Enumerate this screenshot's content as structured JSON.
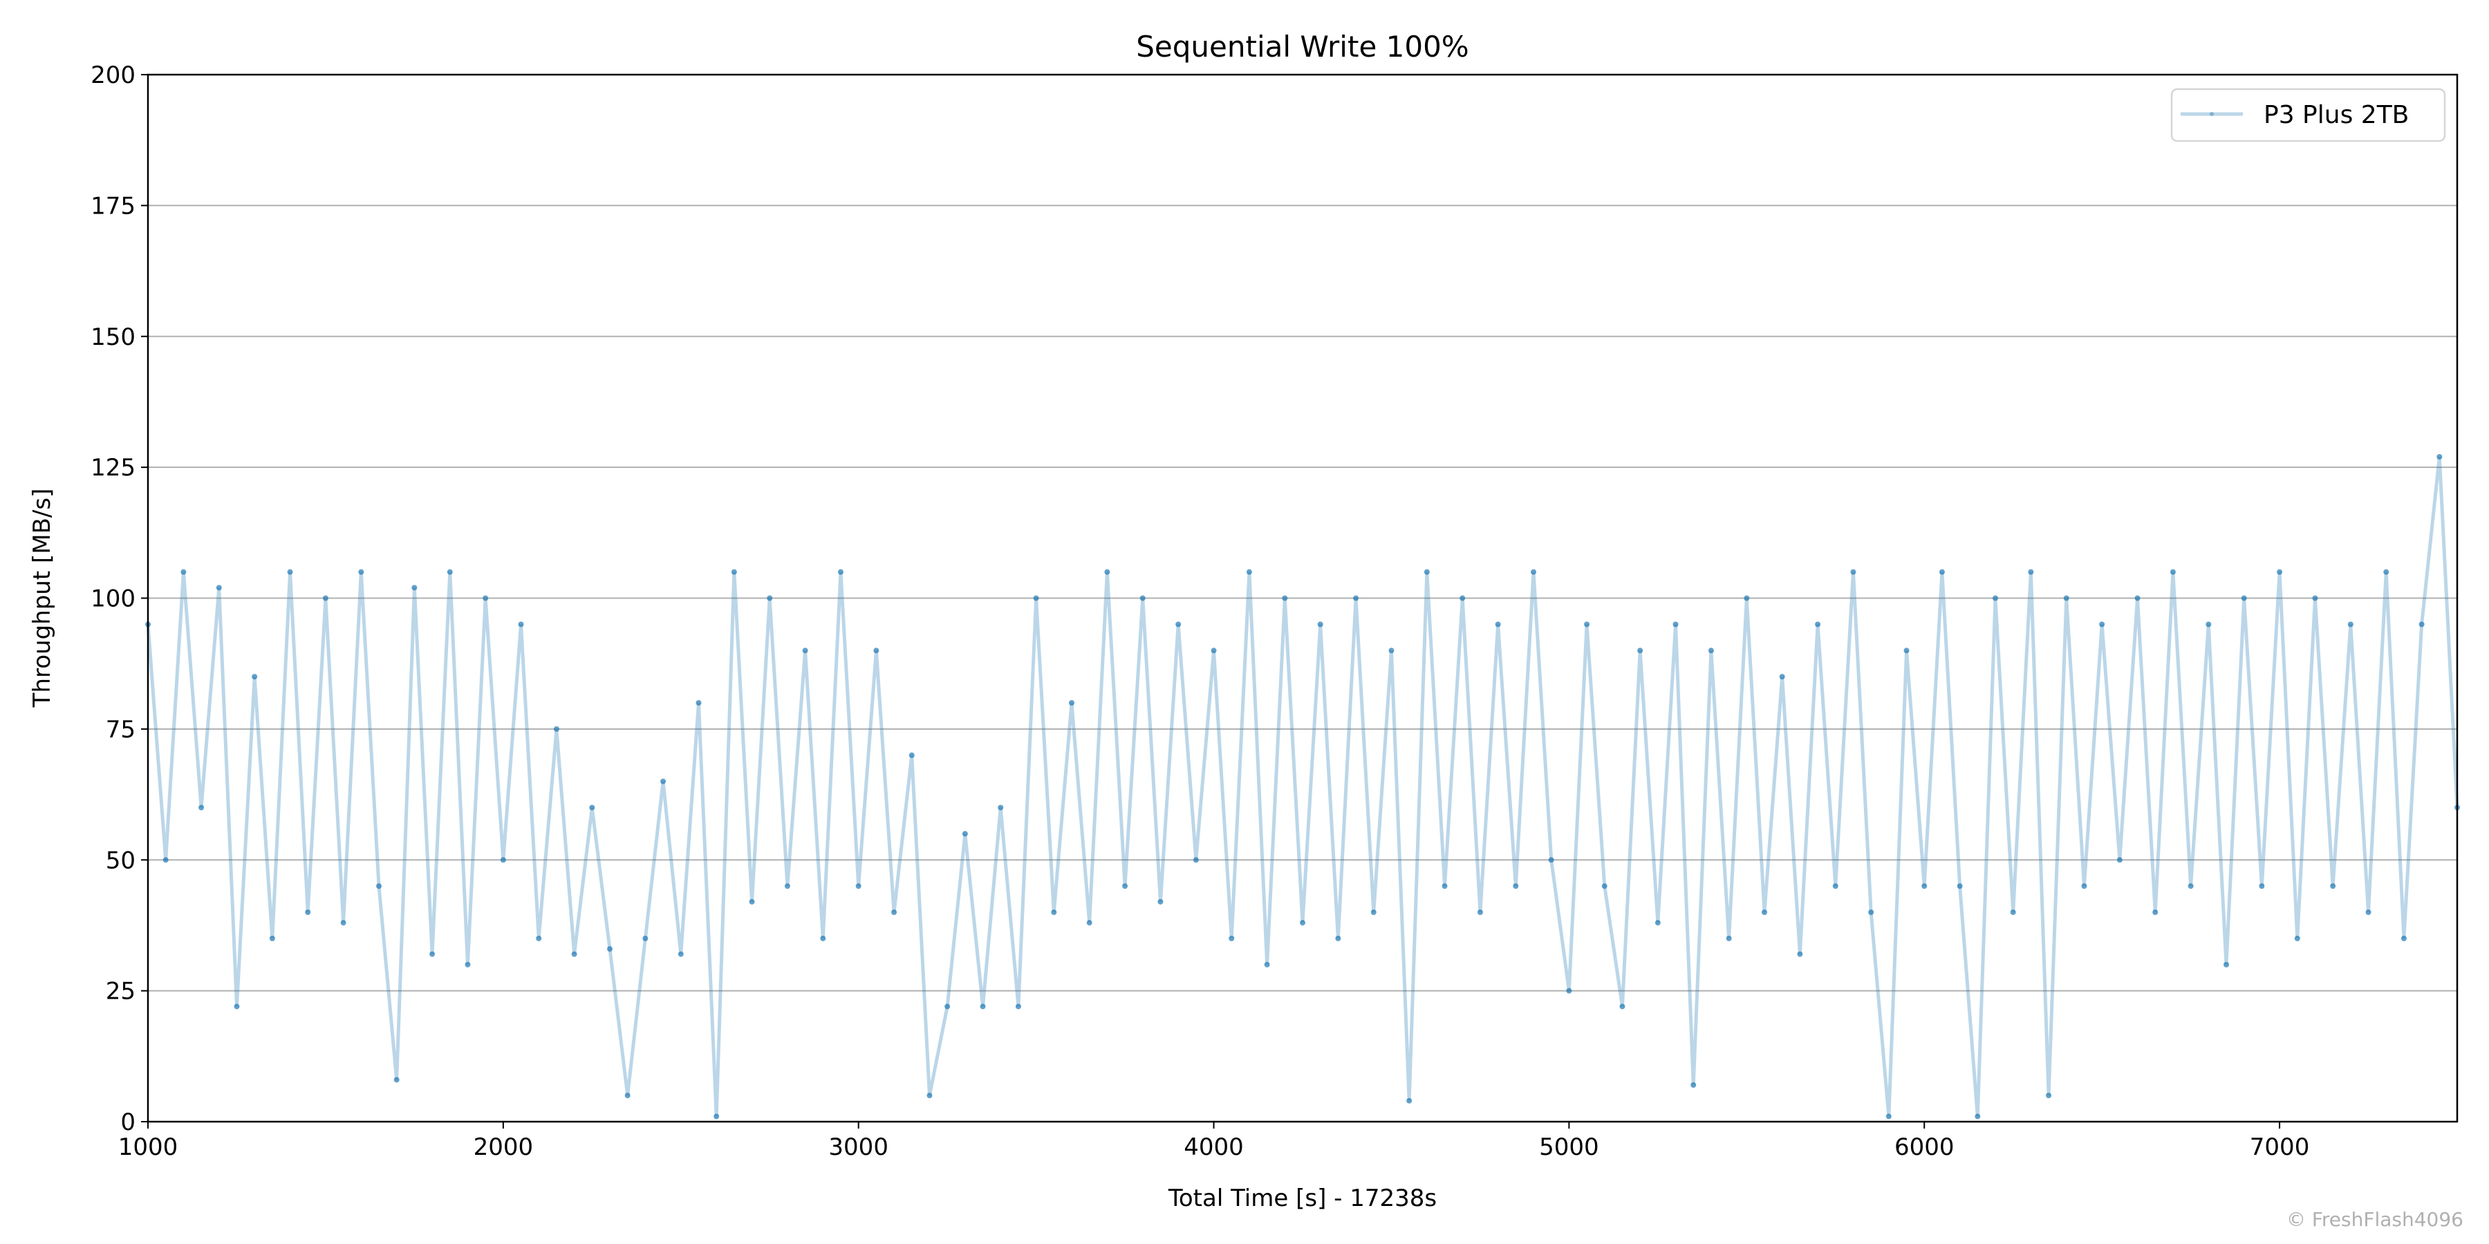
{
  "chart_data": {
    "type": "line",
    "title": "Sequential Write 100%",
    "xlabel": "Total Time [s] - 17238s",
    "ylabel": "Throughput [MB/s]",
    "xlim": [
      1000,
      7500
    ],
    "ylim": [
      0,
      200
    ],
    "xticks": [
      1000,
      2000,
      3000,
      4000,
      5000,
      6000,
      7000
    ],
    "yticks": [
      0,
      25,
      50,
      75,
      100,
      125,
      150,
      175,
      200
    ],
    "grid": "y-major",
    "legend": {
      "position": "top-right",
      "entries": [
        "P3 Plus 2TB"
      ]
    },
    "series": [
      {
        "name": "P3 Plus 2TB",
        "color": "#1f77b4",
        "x": [
          1000,
          1050,
          1100,
          1150,
          1200,
          1250,
          1300,
          1350,
          1400,
          1450,
          1500,
          1550,
          1600,
          1650,
          1700,
          1750,
          1800,
          1850,
          1900,
          1950,
          2000,
          2050,
          2100,
          2150,
          2200,
          2250,
          2300,
          2350,
          2400,
          2450,
          2500,
          2550,
          2600,
          2650,
          2700,
          2750,
          2800,
          2850,
          2900,
          2950,
          3000,
          3050,
          3100,
          3150,
          3200,
          3250,
          3300,
          3350,
          3400,
          3450,
          3500,
          3550,
          3600,
          3650,
          3700,
          3750,
          3800,
          3850,
          3900,
          3950,
          4000,
          4050,
          4100,
          4150,
          4200,
          4250,
          4300,
          4350,
          4400,
          4450,
          4500,
          4550,
          4600,
          4650,
          4700,
          4750,
          4800,
          4850,
          4900,
          4950,
          5000,
          5050,
          5100,
          5150,
          5200,
          5250,
          5300,
          5350,
          5400,
          5450,
          5500,
          5550,
          5600,
          5650,
          5700,
          5750,
          5800,
          5850,
          5900,
          5950,
          6000,
          6050,
          6100,
          6150,
          6200,
          6250,
          6300,
          6350,
          6400,
          6450,
          6500,
          6550,
          6600,
          6650,
          6700,
          6750,
          6800,
          6850,
          6900,
          6950,
          7000,
          7050,
          7100,
          7150,
          7200,
          7250,
          7300,
          7350,
          7400,
          7450,
          7500
        ],
        "y": [
          95,
          50,
          105,
          60,
          102,
          22,
          85,
          35,
          105,
          40,
          100,
          38,
          105,
          45,
          8,
          102,
          32,
          105,
          30,
          100,
          50,
          95,
          35,
          75,
          32,
          60,
          33,
          5,
          35,
          65,
          32,
          80,
          1,
          105,
          42,
          100,
          45,
          90,
          35,
          105,
          45,
          90,
          40,
          70,
          5,
          22,
          55,
          22,
          60,
          22,
          100,
          40,
          80,
          38,
          105,
          45,
          100,
          42,
          95,
          50,
          90,
          35,
          105,
          30,
          100,
          38,
          95,
          35,
          100,
          40,
          90,
          4,
          105,
          45,
          100,
          40,
          95,
          45,
          105,
          50,
          25,
          95,
          45,
          22,
          90,
          38,
          95,
          7,
          90,
          35,
          100,
          40,
          85,
          32,
          95,
          45,
          105,
          40,
          1,
          90,
          45,
          105,
          45,
          1,
          100,
          40,
          105,
          5,
          100,
          45,
          95,
          50,
          100,
          40,
          105,
          45,
          95,
          30,
          100,
          45,
          105,
          35,
          100,
          45,
          95,
          40,
          105,
          35,
          95,
          127,
          60
        ]
      }
    ]
  },
  "watermark": "© FreshFlash4096"
}
